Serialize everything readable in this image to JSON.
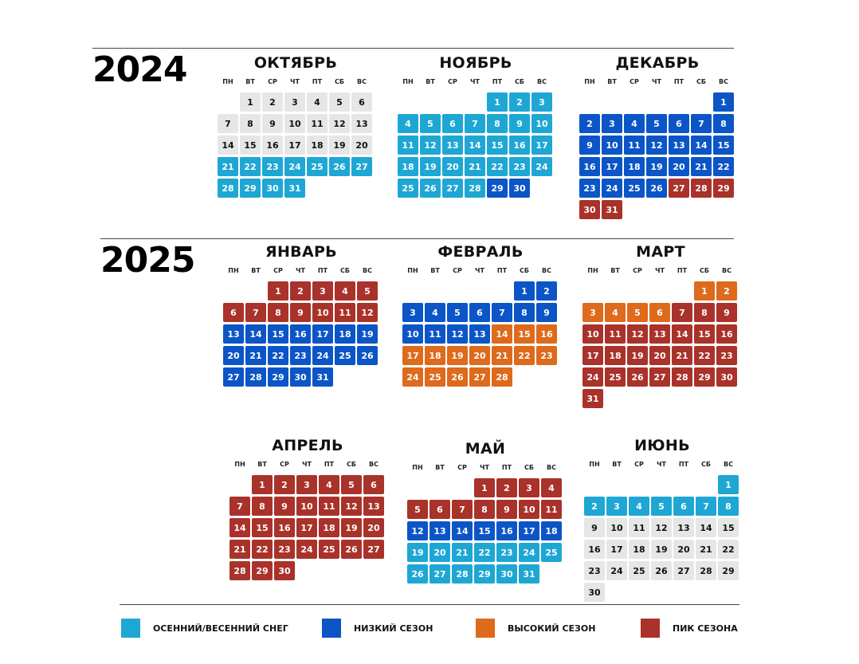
{
  "years": [
    "2024",
    "2025"
  ],
  "weekdays": [
    "ПН",
    "ВТ",
    "СР",
    "ЧТ",
    "ПТ",
    "СБ",
    "ВС"
  ],
  "colors": {
    "snow": "#1ea7d4",
    "low": "#0b55c7",
    "high": "#de6a1c",
    "peak": "#a9322a",
    "off": "#e6e6e6"
  },
  "legend": [
    {
      "key": "snow",
      "label": "ОСЕННИЙ/ВЕСЕННИЙ СНЕГ"
    },
    {
      "key": "low",
      "label": "НИЗКИЙ СЕЗОН"
    },
    {
      "key": "high",
      "label": "ВЫСОКИЙ СЕЗОН"
    },
    {
      "key": "peak",
      "label": "ПИК СЕЗОНА"
    }
  ],
  "months": [
    {
      "id": "oct-2024",
      "name": "ОКТЯБРЬ",
      "start_weekday": 2,
      "days": 31,
      "segments": [
        [
          "off",
          1,
          20
        ],
        [
          "snow",
          21,
          31
        ]
      ]
    },
    {
      "id": "nov-2024",
      "name": "НОЯБРЬ",
      "start_weekday": 5,
      "days": 30,
      "segments": [
        [
          "snow",
          1,
          28
        ],
        [
          "low",
          29,
          30
        ]
      ]
    },
    {
      "id": "dec-2024",
      "name": "ДЕКАБРЬ",
      "start_weekday": 7,
      "days": 31,
      "segments": [
        [
          "low",
          1,
          26
        ],
        [
          "peak",
          27,
          31
        ]
      ]
    },
    {
      "id": "jan-2025",
      "name": "ЯНВАРЬ",
      "start_weekday": 3,
      "days": 31,
      "segments": [
        [
          "peak",
          1,
          12
        ],
        [
          "low",
          13,
          31
        ]
      ]
    },
    {
      "id": "feb-2025",
      "name": "ФЕВРАЛЬ",
      "start_weekday": 6,
      "days": 28,
      "segments": [
        [
          "low",
          1,
          13
        ],
        [
          "high",
          14,
          28
        ]
      ]
    },
    {
      "id": "mar-2025",
      "name": "МАРТ",
      "start_weekday": 6,
      "days": 31,
      "segments": [
        [
          "high",
          1,
          6
        ],
        [
          "peak",
          7,
          31
        ]
      ]
    },
    {
      "id": "apr-2025",
      "name": "АПРЕЛЬ",
      "start_weekday": 2,
      "days": 30,
      "segments": [
        [
          "peak",
          1,
          30
        ]
      ]
    },
    {
      "id": "may-2025",
      "name": "МАЙ",
      "start_weekday": 4,
      "days": 31,
      "segments": [
        [
          "peak",
          1,
          11
        ],
        [
          "low",
          12,
          18
        ],
        [
          "snow",
          19,
          31
        ]
      ]
    },
    {
      "id": "jun-2025",
      "name": "ИЮНЬ",
      "start_weekday": 7,
      "days": 30,
      "segments": [
        [
          "snow",
          1,
          8
        ],
        [
          "off",
          9,
          30
        ]
      ]
    }
  ]
}
